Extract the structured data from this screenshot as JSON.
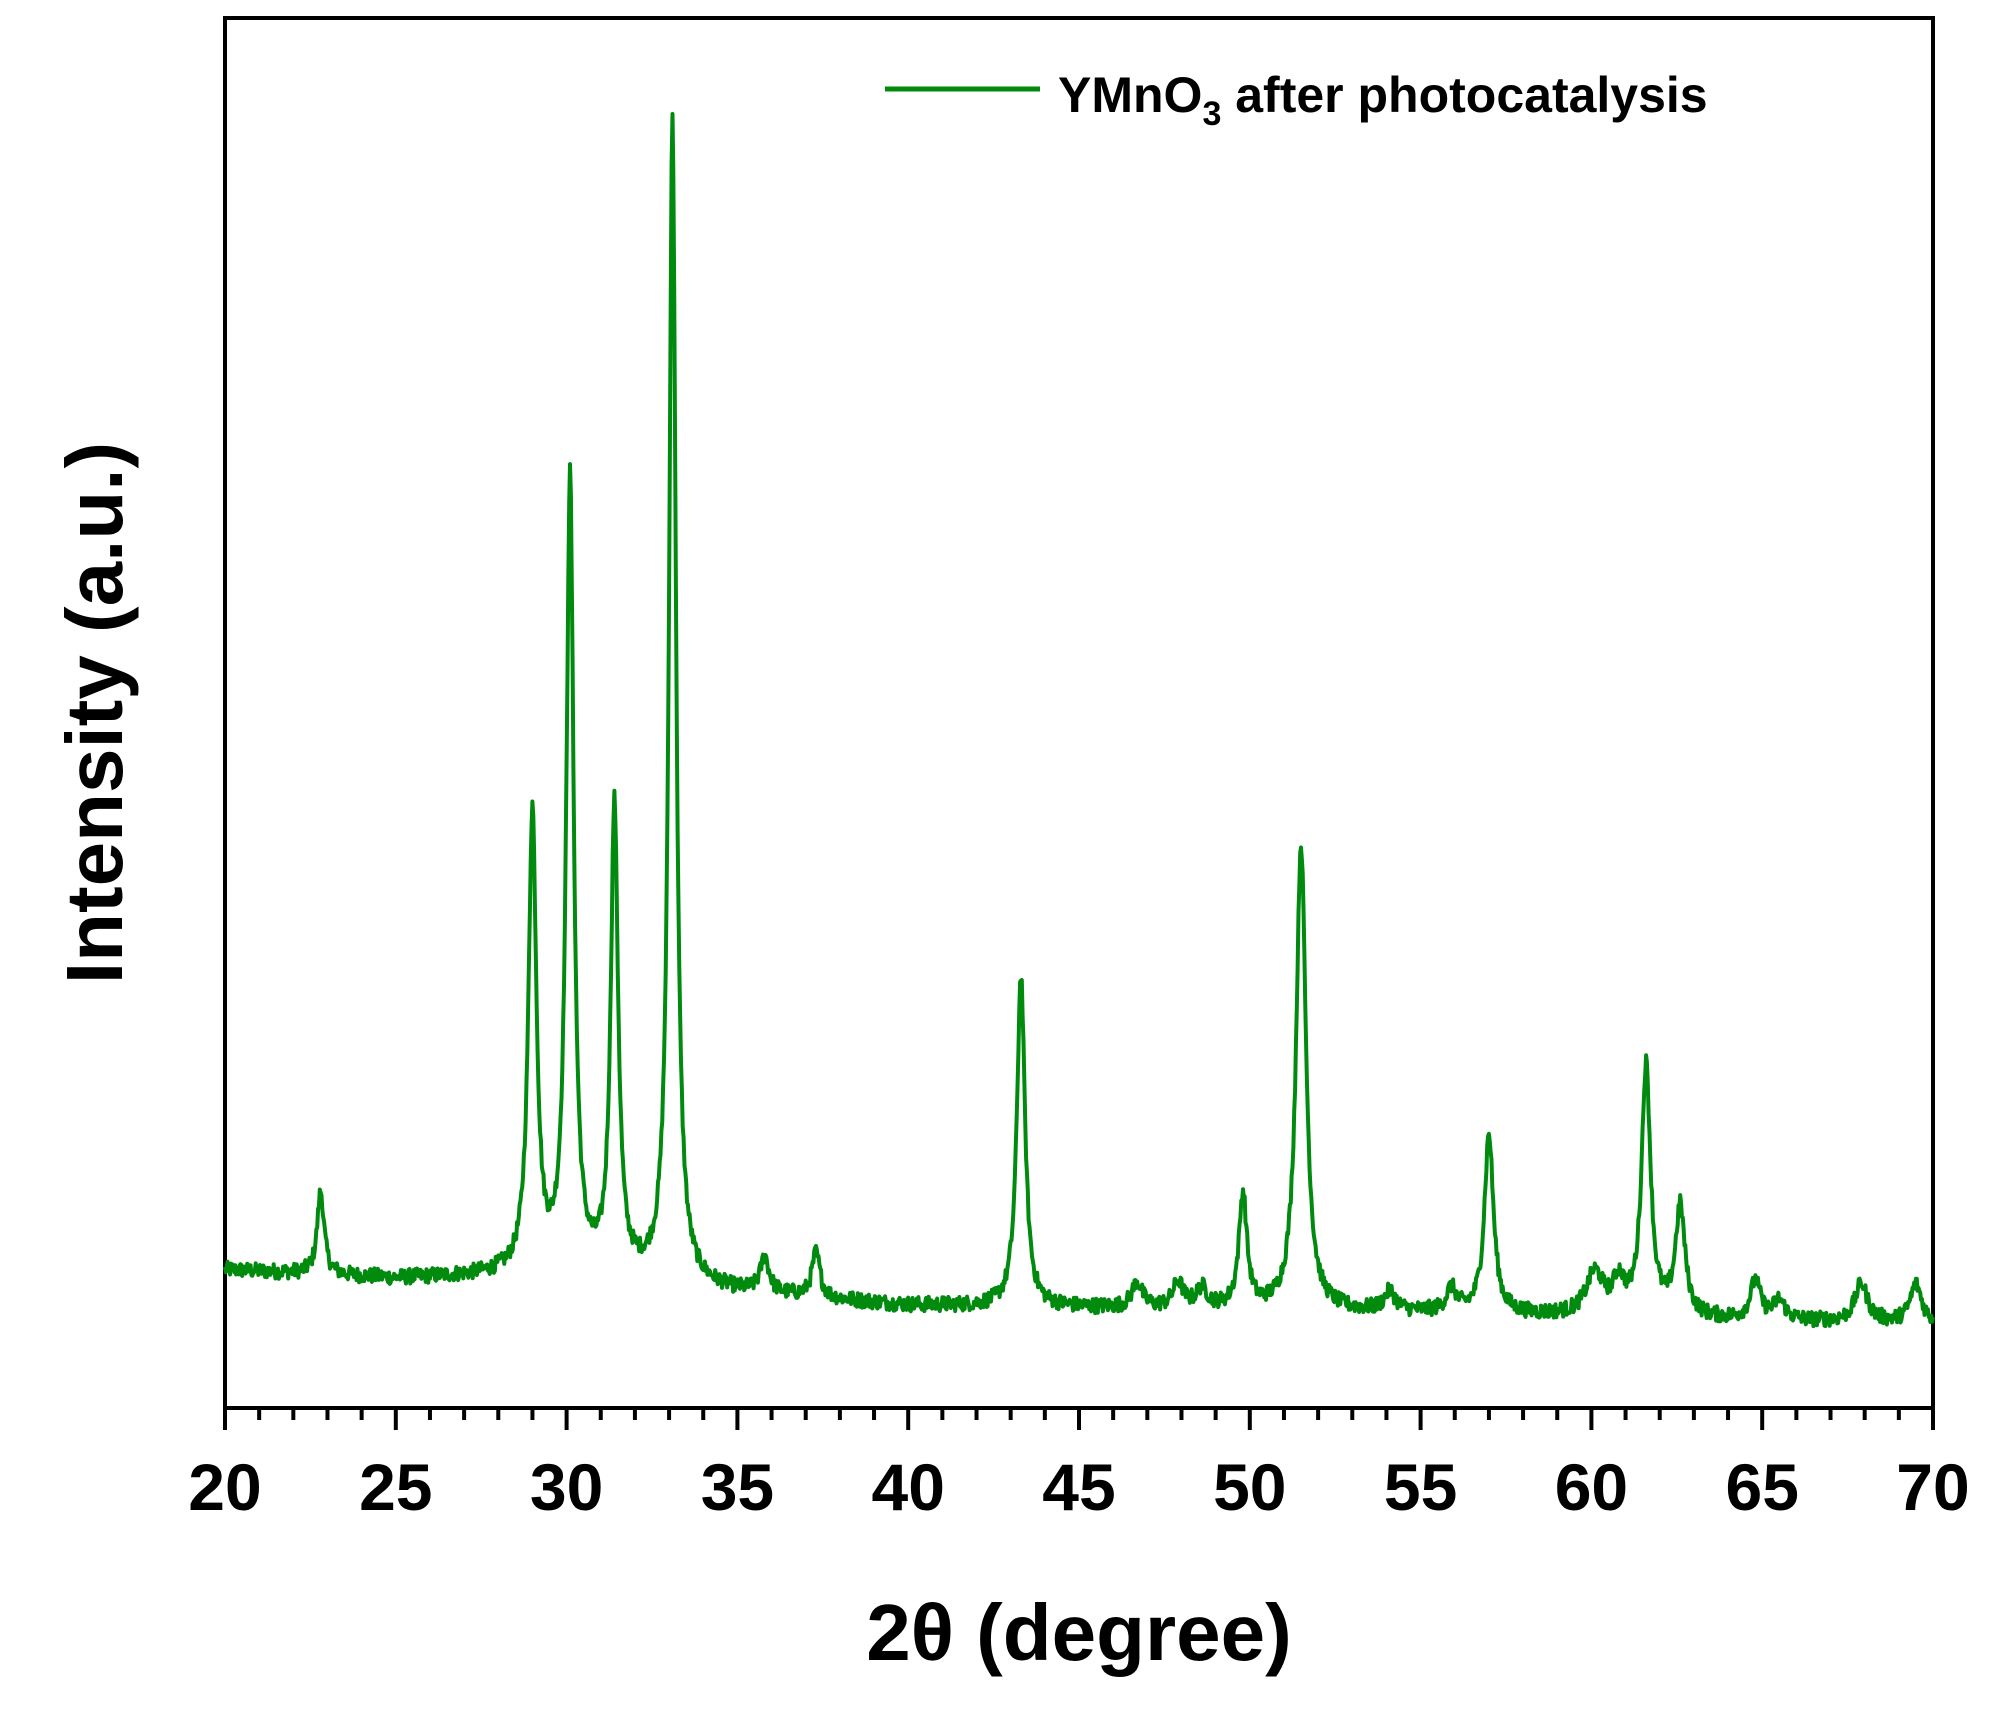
{
  "chart_data": {
    "type": "line",
    "xlabel": "2θ (degree)",
    "ylabel": "Intensity (a.u.)",
    "xlim": [
      20,
      70
    ],
    "ylim": [
      0,
      100
    ],
    "x_ticks": [
      20,
      25,
      30,
      35,
      40,
      45,
      50,
      55,
      60,
      65,
      70
    ],
    "x_tick_labels": [
      "20",
      "25",
      "30",
      "35",
      "40",
      "45",
      "50",
      "55",
      "60",
      "65",
      "70"
    ],
    "y_ticks_shown": false,
    "grid": false,
    "legend": {
      "position": "top-right",
      "entries": [
        {
          "label_main": "YMnO",
          "label_sub": "3",
          "label_rest": " after photocatalysis",
          "color": "#008a0e"
        }
      ]
    },
    "series": [
      {
        "name": "YMnO3 after photocatalysis",
        "color": "#008a0e",
        "baseline": [
          [
            20,
            9
          ],
          [
            25,
            8.3
          ],
          [
            28,
            8.5
          ],
          [
            32,
            8.2
          ],
          [
            35,
            7.2
          ],
          [
            40,
            6.2
          ],
          [
            45,
            6.0
          ],
          [
            50,
            5.8
          ],
          [
            55,
            5.6
          ],
          [
            60,
            5.3
          ],
          [
            65,
            5.0
          ],
          [
            70,
            4.8
          ]
        ],
        "peaks": [
          {
            "x": 22.8,
            "height": 6.5,
            "width": 0.12
          },
          {
            "x": 29.0,
            "height": 36,
            "width": 0.14
          },
          {
            "x": 30.1,
            "height": 62,
            "width": 0.13
          },
          {
            "x": 31.4,
            "height": 36.5,
            "width": 0.13
          },
          {
            "x": 33.1,
            "height": 91,
            "width": 0.12
          },
          {
            "x": 35.8,
            "height": 2.8,
            "width": 0.15
          },
          {
            "x": 37.3,
            "height": 3.5,
            "width": 0.14
          },
          {
            "x": 43.3,
            "height": 26,
            "width": 0.14
          },
          {
            "x": 46.7,
            "height": 2.0,
            "width": 0.18
          },
          {
            "x": 47.9,
            "height": 2.0,
            "width": 0.18
          },
          {
            "x": 48.6,
            "height": 1.5,
            "width": 0.2
          },
          {
            "x": 49.8,
            "height": 9,
            "width": 0.14
          },
          {
            "x": 51.5,
            "height": 36.5,
            "width": 0.17
          },
          {
            "x": 54.1,
            "height": 1.5,
            "width": 0.2
          },
          {
            "x": 55.9,
            "height": 1.8,
            "width": 0.18
          },
          {
            "x": 57.0,
            "height": 14,
            "width": 0.16
          },
          {
            "x": 60.1,
            "height": 3.3,
            "width": 0.3
          },
          {
            "x": 60.8,
            "height": 2.5,
            "width": 0.2
          },
          {
            "x": 61.6,
            "height": 19.5,
            "width": 0.16
          },
          {
            "x": 62.6,
            "height": 8.5,
            "width": 0.17
          },
          {
            "x": 64.8,
            "height": 3.0,
            "width": 0.18
          },
          {
            "x": 65.5,
            "height": 1.5,
            "width": 0.2
          },
          {
            "x": 67.9,
            "height": 3.0,
            "width": 0.22
          },
          {
            "x": 69.5,
            "height": 3.0,
            "width": 0.2
          }
        ],
        "noise_amplitude": 0.6
      }
    ]
  }
}
